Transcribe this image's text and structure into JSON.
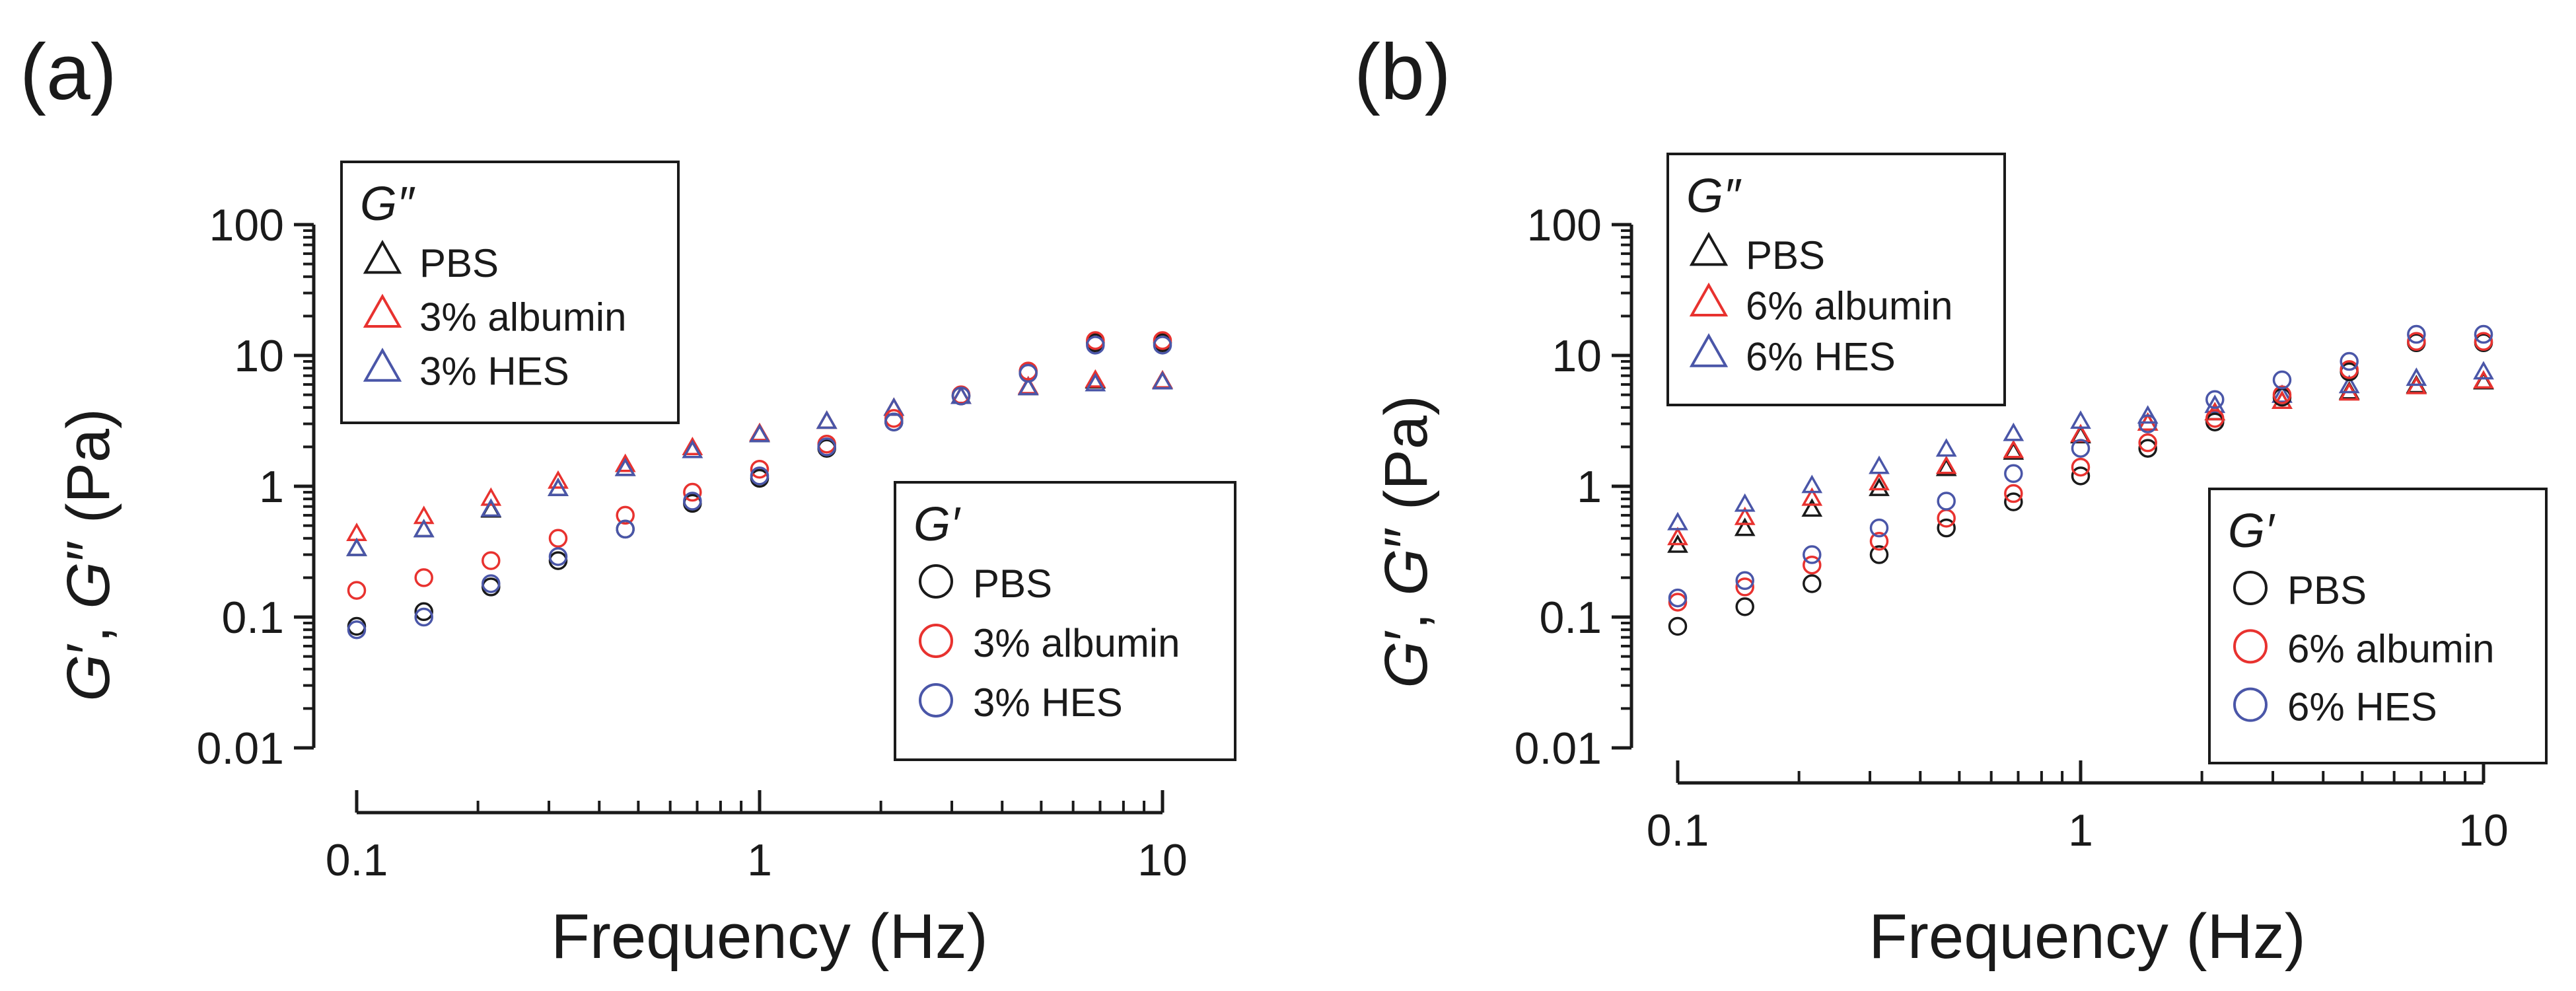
{
  "chart_data": [
    {
      "panel_label": "(a)",
      "type": "scatter",
      "xscale": "log",
      "yscale": "log",
      "xlabel": "Frequency (Hz)",
      "ylabel_parts": [
        "G",
        "′, ",
        "G",
        "″",
        " (Pa)"
      ],
      "xlim": [
        0.1,
        10
      ],
      "ylim": [
        0.01,
        100
      ],
      "xticks": [
        0.1,
        1,
        10
      ],
      "xtick_labels": [
        "0.1",
        "1",
        "10"
      ],
      "yticks": [
        0.01,
        0.1,
        1,
        10,
        100
      ],
      "ytick_labels": [
        "0.01",
        "0.1",
        "1",
        "10",
        "100"
      ],
      "x": [
        0.1,
        0.1468,
        0.2154,
        0.3162,
        0.4642,
        0.6813,
        1.0,
        1.468,
        2.154,
        3.162,
        4.642,
        6.813,
        10.0
      ],
      "legends": [
        {
          "title": "G″",
          "position": "top-left",
          "marker": "triangle",
          "entries": [
            {
              "label": "PBS",
              "color": "#1a1a1a"
            },
            {
              "label": "3% albumin",
              "color": "#e8322f"
            },
            {
              "label": "3% HES",
              "color": "#4a56a8"
            }
          ]
        },
        {
          "title": "G′",
          "position": "bottom-right",
          "marker": "circle",
          "entries": [
            {
              "label": "PBS",
              "color": "#1a1a1a"
            },
            {
              "label": "3% albumin",
              "color": "#e8322f"
            },
            {
              "label": "3% HES",
              "color": "#4a56a8"
            }
          ]
        }
      ],
      "series": [
        {
          "name": "G″ PBS",
          "marker": "triangle",
          "color": "#1a1a1a",
          "values": [
            0.33,
            0.46,
            0.65,
            0.95,
            1.35,
            1.85,
            2.45,
            3.1,
            3.9,
            4.8,
            5.6,
            6.3,
            6.3
          ]
        },
        {
          "name": "G″ 3% albumin",
          "marker": "triangle",
          "color": "#e8322f",
          "values": [
            0.43,
            0.58,
            0.8,
            1.08,
            1.45,
            1.95,
            2.5,
            3.1,
            3.9,
            4.8,
            5.7,
            6.4,
            6.3
          ]
        },
        {
          "name": "G″ 3% HES",
          "marker": "triangle",
          "color": "#4a56a8",
          "values": [
            0.33,
            0.46,
            0.66,
            0.95,
            1.35,
            1.85,
            2.45,
            3.1,
            3.9,
            4.8,
            5.6,
            6.0,
            6.2
          ]
        },
        {
          "name": "G′ PBS",
          "marker": "circle",
          "color": "#1a1a1a",
          "values": [
            0.085,
            0.11,
            0.17,
            0.27,
            0.47,
            0.74,
            1.15,
            1.95,
            3.1,
            4.9,
            7.5,
            12.5,
            12.5
          ]
        },
        {
          "name": "G′ 3% albumin",
          "marker": "circle",
          "color": "#e8322f",
          "values": [
            0.16,
            0.2,
            0.27,
            0.4,
            0.6,
            0.9,
            1.35,
            2.1,
            3.3,
            5.0,
            7.6,
            13.0,
            13.0
          ]
        },
        {
          "name": "G′ 3% HES",
          "marker": "circle",
          "color": "#4a56a8",
          "values": [
            0.08,
            0.1,
            0.18,
            0.29,
            0.47,
            0.77,
            1.2,
            2.0,
            3.1,
            4.9,
            7.3,
            12.0,
            12.0
          ]
        }
      ]
    },
    {
      "panel_label": "(b)",
      "type": "scatter",
      "xscale": "log",
      "yscale": "log",
      "xlabel": "Frequency (Hz)",
      "ylabel_parts": [
        "G",
        "′, ",
        "G",
        "″",
        " (Pa)"
      ],
      "xlim": [
        0.1,
        10
      ],
      "ylim": [
        0.01,
        100
      ],
      "xticks": [
        0.1,
        1,
        10
      ],
      "xtick_labels": [
        "0.1",
        "1",
        "10"
      ],
      "yticks": [
        0.01,
        0.1,
        1,
        10,
        100
      ],
      "ytick_labels": [
        "0.01",
        "0.1",
        "1",
        "10",
        "100"
      ],
      "x": [
        0.1,
        0.1468,
        0.2154,
        0.3162,
        0.4642,
        0.6813,
        1.0,
        1.468,
        2.154,
        3.162,
        4.642,
        6.813,
        10.0
      ],
      "legends": [
        {
          "title": "G″",
          "position": "top-left",
          "marker": "triangle",
          "entries": [
            {
              "label": "PBS",
              "color": "#1a1a1a"
            },
            {
              "label": "6% albumin",
              "color": "#e8322f"
            },
            {
              "label": "6% HES",
              "color": "#4a56a8"
            }
          ]
        },
        {
          "title": "G′",
          "position": "bottom-right",
          "marker": "circle",
          "entries": [
            {
              "label": "PBS",
              "color": "#1a1a1a"
            },
            {
              "label": "6% albumin",
              "color": "#e8322f"
            },
            {
              "label": "6% HES",
              "color": "#4a56a8"
            }
          ]
        }
      ],
      "series": [
        {
          "name": "G″ PBS",
          "marker": "triangle",
          "color": "#1a1a1a",
          "values": [
            0.35,
            0.47,
            0.66,
            0.95,
            1.35,
            1.8,
            2.4,
            3.0,
            3.6,
            4.4,
            5.2,
            5.8,
            6.2
          ]
        },
        {
          "name": "G″ 6% albumin",
          "marker": "triangle",
          "color": "#e8322f",
          "values": [
            0.4,
            0.57,
            0.8,
            1.05,
            1.4,
            1.85,
            2.45,
            3.0,
            3.6,
            4.4,
            5.1,
            5.7,
            6.3
          ]
        },
        {
          "name": "G″ 6% HES",
          "marker": "triangle",
          "color": "#4a56a8",
          "values": [
            0.52,
            0.72,
            1.0,
            1.4,
            1.9,
            2.5,
            3.1,
            3.4,
            4.1,
            4.9,
            5.8,
            6.6,
            7.4
          ]
        },
        {
          "name": "G′ PBS",
          "marker": "circle",
          "color": "#1a1a1a",
          "values": [
            0.085,
            0.12,
            0.18,
            0.3,
            0.48,
            0.76,
            1.2,
            1.95,
            3.1,
            4.8,
            7.5,
            12.5,
            12.5
          ]
        },
        {
          "name": "G′ 6% albumin",
          "marker": "circle",
          "color": "#e8322f",
          "values": [
            0.13,
            0.17,
            0.25,
            0.38,
            0.57,
            0.88,
            1.4,
            2.15,
            3.3,
            5.0,
            7.8,
            12.8,
            12.8
          ]
        },
        {
          "name": "G′ 6% HES",
          "marker": "circle",
          "color": "#4a56a8",
          "values": [
            0.14,
            0.19,
            0.3,
            0.48,
            0.77,
            1.25,
            1.95,
            3.0,
            4.6,
            6.5,
            9.0,
            14.5,
            14.5
          ]
        }
      ]
    }
  ]
}
